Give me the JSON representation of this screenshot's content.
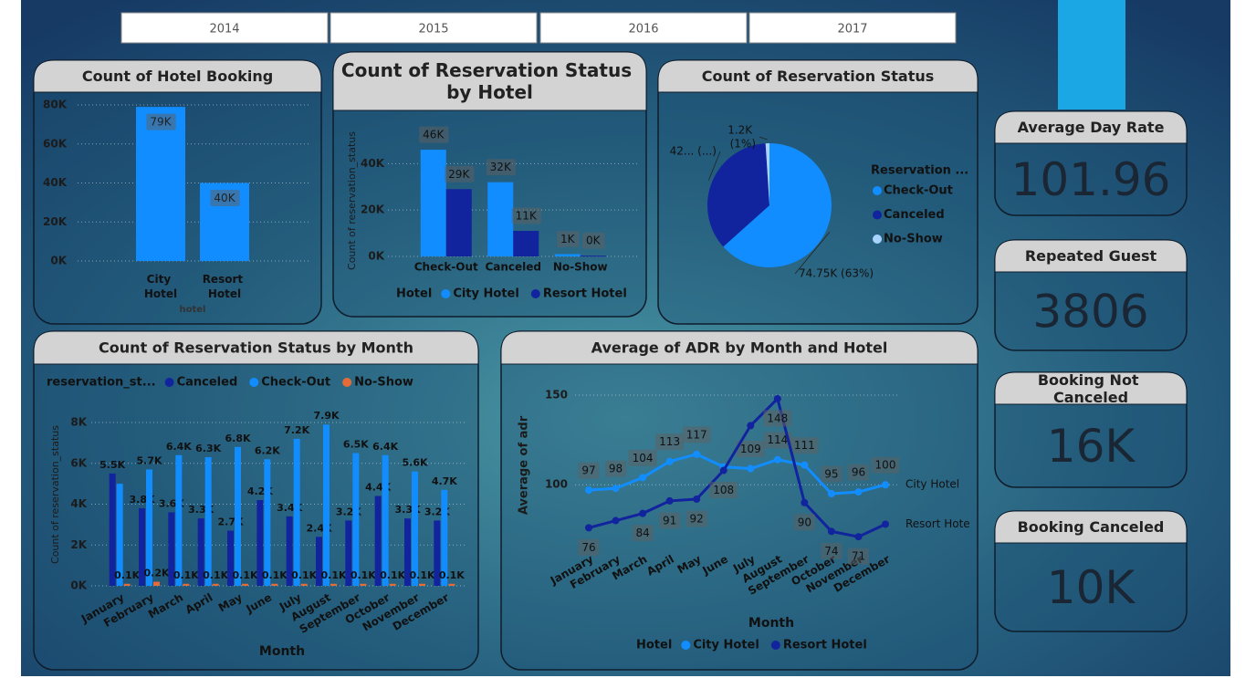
{
  "slicer": {
    "options": [
      "2014",
      "2015",
      "2016",
      "2017"
    ]
  },
  "cards": [
    {
      "title": "Average Day Rate",
      "value": "101.96"
    },
    {
      "title": "Repeated Guest",
      "value": "3806"
    },
    {
      "title": "Booking Not Canceled",
      "value": "16K"
    },
    {
      "title": "Booking Canceled",
      "value": "10K"
    }
  ],
  "chart_data": [
    {
      "type": "bar",
      "title": "Count of Hotel Booking",
      "x_label": "hotel",
      "categories": [
        "City Hotel",
        "Resort Hotel"
      ],
      "values": [
        79000,
        40000
      ],
      "value_labels": [
        "79K",
        "40K"
      ],
      "color": "#118dff",
      "ylim": [
        0,
        80000
      ],
      "yticks": [
        {
          "value": 0,
          "label": "0K"
        },
        {
          "value": 20000,
          "label": "20K"
        },
        {
          "value": 40000,
          "label": "40K"
        },
        {
          "value": 60000,
          "label": "60K"
        },
        {
          "value": 80000,
          "label": "80K"
        }
      ],
      "grid": true
    },
    {
      "type": "grouped_bar",
      "title": "Count of Reservation Status by Hotel",
      "y_label": "Count of reservation_status",
      "legend_title": "Hotel",
      "categories": [
        "Check-Out",
        "Canceled",
        "No-Show"
      ],
      "series": [
        {
          "name": "City Hotel",
          "color": "#118dff",
          "values": [
            46000,
            32000,
            1000
          ],
          "value_labels": [
            "46K",
            "32K",
            "1K"
          ]
        },
        {
          "name": "Resort Hotel",
          "color": "#12239e",
          "values": [
            29000,
            11000,
            300
          ],
          "value_labels": [
            "29K",
            "11K",
            "0K"
          ]
        }
      ],
      "ylim": [
        0,
        48000
      ],
      "yticks": [
        {
          "value": 0,
          "label": "0K"
        },
        {
          "value": 20000,
          "label": "20K"
        },
        {
          "value": 40000,
          "label": "40K"
        }
      ],
      "grid": true
    },
    {
      "type": "pie",
      "title": "Count of Reservation Status",
      "legend_title": "Reservation ...",
      "categories": [
        "Check-Out",
        "Canceled",
        "No-Show"
      ],
      "values": [
        74750,
        42000,
        1200
      ],
      "value_labels": [
        "74.75K (63%)",
        "42... (...)",
        "1.2K (1%)"
      ],
      "colors": [
        "#118dff",
        "#12239e",
        "#a9d3ff"
      ]
    },
    {
      "type": "grouped_bar",
      "title": "Count of Reservation Status by Month",
      "x_label": "Month",
      "y_label": "Count of reservation_status",
      "legend_title": "reservation_st...",
      "categories": [
        "January",
        "February",
        "March",
        "April",
        "May",
        "June",
        "July",
        "August",
        "September",
        "October",
        "November",
        "December"
      ],
      "series": [
        {
          "name": "Canceled",
          "color": "#12239e",
          "values": [
            5500,
            3800,
            3600,
            3300,
            2700,
            4200,
            3400,
            2400,
            3200,
            4400,
            3300,
            3200
          ],
          "value_labels": [
            "5.5K",
            "3.8K",
            "3.6K",
            "3.3K",
            "2.7K",
            "4.2K",
            "3.4K",
            "2.4K",
            "3.2K",
            "4.4K",
            "3.3K",
            "3.2K"
          ]
        },
        {
          "name": "Check-Out",
          "color": "#118dff",
          "values": [
            5000,
            5700,
            6400,
            6300,
            6800,
            6200,
            7200,
            7900,
            6500,
            6400,
            5600,
            4700
          ],
          "value_labels": [
            null,
            "5.7K",
            "6.4K",
            "6.3K",
            "6.8K",
            "6.2K",
            "7.2K",
            "7.9K",
            "6.5K",
            "6.4K",
            "5.6K",
            "4.7K"
          ]
        },
        {
          "name": "No-Show",
          "color": "#e66c37",
          "values": [
            100,
            200,
            100,
            100,
            100,
            100,
            100,
            100,
            100,
            100,
            100,
            100
          ],
          "value_labels": [
            "0.1K",
            "0.2K",
            "0.1K",
            "0.1K",
            "0.1K",
            "0.1K",
            "0.1K",
            "0.1K",
            "0.1K",
            "0.1K",
            "0.1K",
            "0.1K"
          ]
        }
      ],
      "ylim": [
        0,
        8000
      ],
      "yticks": [
        {
          "value": 0,
          "label": "0K"
        },
        {
          "value": 2000,
          "label": "2K"
        },
        {
          "value": 4000,
          "label": "4K"
        },
        {
          "value": 6000,
          "label": "6K"
        },
        {
          "value": 8000,
          "label": "8K"
        }
      ],
      "grid": true
    },
    {
      "type": "line",
      "title": "Average of ADR by Month and Hotel",
      "x_label": "Month",
      "y_label": "Average of adr",
      "legend_title": "Hotel",
      "categories": [
        "January",
        "February",
        "March",
        "April",
        "May",
        "June",
        "July",
        "August",
        "September",
        "October",
        "November",
        "December"
      ],
      "series": [
        {
          "name": "City Hotel",
          "color": "#118dff",
          "values": [
            97,
            98,
            104,
            113,
            117,
            110,
            109,
            114,
            111,
            95,
            96,
            100
          ],
          "value_labels": [
            "97",
            "98",
            "104",
            "113",
            "117",
            null,
            "109",
            "114",
            "111",
            "95",
            "96",
            "100"
          ]
        },
        {
          "name": "Resort Hotel",
          "color": "#12239e",
          "values": [
            76,
            80,
            84,
            91,
            92,
            108,
            133,
            148,
            90,
            74,
            71,
            78
          ],
          "value_labels": [
            "76",
            null,
            "84",
            "91",
            "92",
            "108",
            null,
            "148",
            "90",
            "74",
            "71",
            null
          ]
        }
      ],
      "ylim": [
        65,
        150
      ],
      "yticks": [
        100,
        150
      ],
      "grid": true
    }
  ]
}
